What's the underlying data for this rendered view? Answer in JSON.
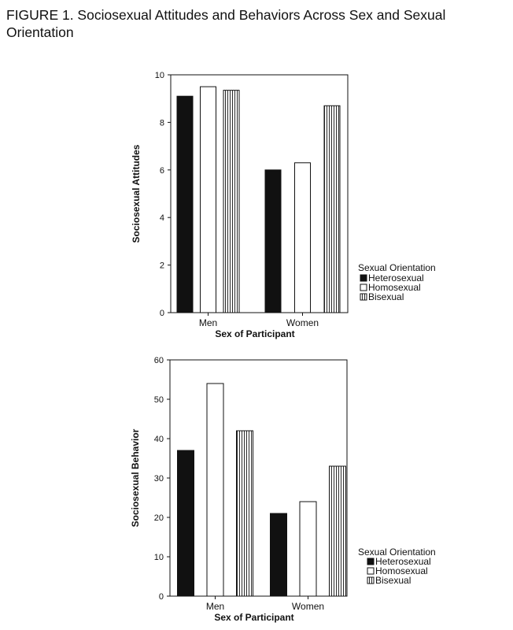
{
  "figure": {
    "caption": "FIGURE 1. Sociosexual Attitudes and Behaviors Across Sex and Sexual Orientation"
  },
  "chart_data": [
    {
      "type": "bar",
      "title": "",
      "xlabel": "Sex of Participant",
      "ylabel": "Sociosexual Attitudes",
      "categories": [
        "Men",
        "Women"
      ],
      "ylim": [
        0,
        10
      ],
      "yticks": [
        0,
        2,
        4,
        6,
        8,
        10
      ],
      "grid": false,
      "legend": {
        "title": "Sexual Orientation",
        "position": "right",
        "entries": [
          "Heterosexual",
          "Homosexual",
          "Bisexual"
        ]
      },
      "series": [
        {
          "name": "Heterosexual",
          "fill": "solid",
          "values": [
            9.1,
            6.0
          ]
        },
        {
          "name": "Homosexual",
          "fill": "open",
          "values": [
            9.5,
            6.3
          ]
        },
        {
          "name": "Bisexual",
          "fill": "vertical-lines",
          "values": [
            9.35,
            8.7
          ]
        }
      ]
    },
    {
      "type": "bar",
      "title": "",
      "xlabel": "Sex of Participant",
      "ylabel": "Sociosexual Behavior",
      "categories": [
        "Men",
        "Women"
      ],
      "ylim": [
        0,
        60
      ],
      "yticks": [
        0,
        10,
        20,
        30,
        40,
        50,
        60
      ],
      "grid": false,
      "legend": {
        "title": "Sexual Orientation",
        "position": "right",
        "entries": [
          "Heterosexual",
          "Homosexual",
          "Bisexual"
        ]
      },
      "series": [
        {
          "name": "Heterosexual",
          "fill": "solid",
          "values": [
            37,
            21
          ]
        },
        {
          "name": "Homosexual",
          "fill": "open",
          "values": [
            54,
            24
          ]
        },
        {
          "name": "Bisexual",
          "fill": "vertical-lines",
          "values": [
            42,
            33
          ]
        }
      ]
    }
  ],
  "colors": {
    "ink": "#111111",
    "background": "#ffffff"
  }
}
